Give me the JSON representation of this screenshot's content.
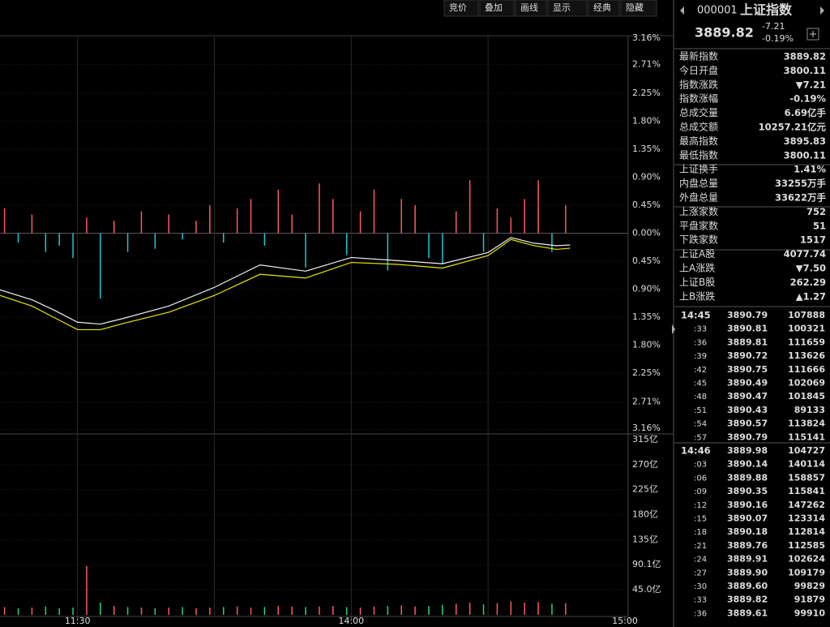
{
  "toolbar": [
    "竞价",
    "叠加",
    "画线",
    "显示",
    "经典",
    "隐藏"
  ],
  "quote": {
    "code": "000001",
    "name": "上证指数",
    "price": "3889.82",
    "change": "-7.21",
    "change_pct": "-0.19%"
  },
  "stats": [
    {
      "label": "最新指数",
      "value": "3889.82",
      "color": "#3ee06a"
    },
    {
      "label": "今日开盘",
      "value": "3800.11",
      "color": "#3ee06a"
    },
    {
      "label": "指数涨跌",
      "value": "▼7.21",
      "color": "#3ee06a"
    },
    {
      "label": "指数涨幅",
      "value": "-0.19%",
      "color": "#3ee06a"
    },
    {
      "label": "总成交量",
      "value": "6.69亿手",
      "color": "#e8e8e8"
    },
    {
      "label": "总成交额",
      "value": "10257.21亿元",
      "color": "#4ee8ff"
    },
    {
      "label": "最高指数",
      "value": "3895.83",
      "color": "#3ee06a"
    },
    {
      "label": "最低指数",
      "value": "3800.11",
      "color": "#3ee06a"
    },
    {
      "label": "上证换手",
      "value": "1.41%",
      "color": "#e8e8e8"
    },
    {
      "label": "内盘总量",
      "value": "33255万手",
      "color": "#3ee06a"
    },
    {
      "label": "外盘总量",
      "value": "33622万手",
      "color": "#ff4b4b"
    },
    {
      "label": "上涨家数",
      "value": "752",
      "color": "#ff4b4b"
    },
    {
      "label": "平盘家数",
      "value": "51",
      "color": "#e8e8e8"
    },
    {
      "label": "下跌家数",
      "value": "1517",
      "color": "#3ee06a"
    },
    {
      "label": "上证A股",
      "value": "4077.74",
      "color": "#3ee06a"
    },
    {
      "label": "上A涨跌",
      "value": "▼7.50",
      "color": "#3ee06a"
    },
    {
      "label": "上证B股",
      "value": "262.29",
      "color": "#ff4b4b"
    },
    {
      "label": "上B涨跌",
      "value": "▲1.27",
      "color": "#ff4b4b"
    }
  ],
  "trades": [
    {
      "time": "14:45",
      "price": "3890.79",
      "volume": "107888",
      "color": "#ff4b4b"
    },
    {
      "time": ":33",
      "price": "3890.81",
      "volume": "100321",
      "color": "#ff4b4b"
    },
    {
      "time": ":36",
      "price": "3889.81",
      "volume": "111659",
      "color": "#3ee06a"
    },
    {
      "time": ":39",
      "price": "3890.72",
      "volume": "113626",
      "color": "#ff4b4b"
    },
    {
      "time": ":42",
      "price": "3890.75",
      "volume": "111666",
      "color": "#3ee06a"
    },
    {
      "time": ":45",
      "price": "3890.49",
      "volume": "102069",
      "color": "#3ee06a"
    },
    {
      "time": ":48",
      "price": "3890.47",
      "volume": "101845",
      "color": "#3ee06a"
    },
    {
      "time": ":51",
      "price": "3890.43",
      "volume": "89133",
      "color": "#3ee06a"
    },
    {
      "time": ":54",
      "price": "3890.57",
      "volume": "113824",
      "color": "#ff4b4b"
    },
    {
      "time": ":57",
      "price": "3890.79",
      "volume": "115141",
      "color": "#3ee06a"
    },
    {
      "time": "14:46",
      "price": "3889.98",
      "volume": "104727",
      "color": "#3ee06a"
    },
    {
      "time": ":03",
      "price": "3890.14",
      "volume": "140114",
      "color": "#ff4b4b"
    },
    {
      "time": ":06",
      "price": "3889.88",
      "volume": "158857",
      "color": "#3ee06a"
    },
    {
      "time": ":09",
      "price": "3890.35",
      "volume": "115841",
      "color": "#ff4b4b"
    },
    {
      "time": ":12",
      "price": "3890.16",
      "volume": "147262",
      "color": "#3ee06a"
    },
    {
      "time": ":15",
      "price": "3890.07",
      "volume": "123314",
      "color": "#3ee06a"
    },
    {
      "time": ":18",
      "price": "3890.18",
      "volume": "112814",
      "color": "#ff4b4b"
    },
    {
      "time": ":21",
      "price": "3889.76",
      "volume": "112585",
      "color": "#3ee06a"
    },
    {
      "time": ":24",
      "price": "3889.91",
      "volume": "102624",
      "color": "#ff4b4b"
    },
    {
      "time": ":27",
      "price": "3889.90",
      "volume": "109179",
      "color": "#3ee06a"
    },
    {
      "time": ":30",
      "price": "3889.60",
      "volume": "99829",
      "color": "#3ee06a"
    },
    {
      "time": ":33",
      "price": "3889.82",
      "volume": "91879",
      "color": "#ff4b4b"
    },
    {
      "time": ":36",
      "price": "3889.61",
      "volume": "99910",
      "color": "#3ee06a"
    }
  ],
  "price_chart": {
    "type": "line",
    "xlim": [
      103,
      240
    ],
    "ylim": [
      -3.16,
      3.16
    ],
    "yticks": [
      {
        "value": 3.16,
        "label": "3.16%"
      },
      {
        "value": 2.71,
        "label": "2.71%"
      },
      {
        "value": 2.25,
        "label": "2.25%"
      },
      {
        "value": 1.8,
        "label": "1.80%"
      },
      {
        "value": 1.35,
        "label": "1.35%"
      },
      {
        "value": 0.9,
        "label": "0.90%"
      },
      {
        "value": 0.45,
        "label": "0.45%"
      },
      {
        "value": 0,
        "label": "0.00%"
      },
      {
        "value": -0.45,
        "label": "0.45%"
      },
      {
        "value": -0.9,
        "label": "0.90%"
      },
      {
        "value": -1.35,
        "label": "1.35%"
      },
      {
        "value": -1.8,
        "label": "1.80%"
      },
      {
        "value": -2.25,
        "label": "2.25%"
      },
      {
        "value": -2.71,
        "label": "2.71%"
      },
      {
        "value": -3.16,
        "label": "3.16%"
      }
    ],
    "xgrid": [
      120,
      150,
      180,
      210
    ],
    "xticks": [
      {
        "value": 120,
        "label": "11:30"
      },
      {
        "value": 180,
        "label": "14:00"
      },
      {
        "value": 240,
        "label": "15:00"
      }
    ],
    "x": [
      103,
      110,
      115,
      120,
      125,
      130,
      140,
      150,
      160,
      170,
      180,
      190,
      200,
      210,
      215,
      220,
      225,
      228
    ],
    "series": [
      {
        "color": "#f0f0f0",
        "values": [
          -0.91,
          -1.07,
          -1.24,
          -1.43,
          -1.46,
          -1.37,
          -1.17,
          -0.87,
          -0.51,
          -0.61,
          -0.39,
          -0.44,
          -0.49,
          -0.31,
          -0.07,
          -0.16,
          -0.2,
          -0.19
        ]
      },
      {
        "color": "#e6e600",
        "values": [
          -1.0,
          -1.17,
          -1.36,
          -1.55,
          -1.55,
          -1.45,
          -1.27,
          -1.0,
          -0.66,
          -0.72,
          -0.47,
          -0.5,
          -0.56,
          -0.36,
          -0.1,
          -0.2,
          -0.26,
          -0.24
        ]
      }
    ],
    "up_color": "#ff5a5a",
    "down_color": "#1ec8d2"
  },
  "minute_bars": {
    "x": [
      104,
      107,
      110,
      113,
      116,
      119,
      122,
      125,
      128,
      131,
      134,
      137,
      140,
      143,
      146,
      149,
      152,
      155,
      158,
      161,
      164,
      167,
      170,
      173,
      176,
      179,
      182,
      185,
      188,
      191,
      194,
      197,
      200,
      203,
      206,
      209,
      212,
      215,
      218,
      221,
      224,
      227
    ],
    "breadth": [
      0.4,
      -0.15,
      0.3,
      -0.3,
      -0.2,
      -0.4,
      0.25,
      -1.05,
      0.2,
      -0.3,
      0.35,
      -0.25,
      0.3,
      -0.1,
      0.2,
      0.45,
      -0.15,
      0.4,
      0.55,
      -0.2,
      0.7,
      0.3,
      -0.55,
      0.8,
      0.55,
      -0.35,
      0.35,
      0.7,
      -0.6,
      0.55,
      0.45,
      -0.4,
      -0.5,
      0.35,
      0.85,
      -0.3,
      0.4,
      0.25,
      0.55,
      0.85,
      -0.3,
      0.45
    ],
    "volume": [
      14,
      12,
      13,
      15,
      12,
      13,
      88,
      22,
      16,
      14,
      13,
      12,
      13,
      14,
      12,
      13,
      14,
      15,
      13,
      14,
      16,
      15,
      14,
      15,
      16,
      14,
      13,
      15,
      16,
      17,
      15,
      16,
      18,
      20,
      22,
      19,
      21,
      24,
      22,
      23,
      20,
      21
    ]
  },
  "volume_chart": {
    "type": "bar",
    "ylim": [
      0,
      315
    ],
    "yticks": [
      {
        "value": 315,
        "label": "315亿"
      },
      {
        "value": 270,
        "label": "270亿"
      },
      {
        "value": 225,
        "label": "225亿"
      },
      {
        "value": 180,
        "label": "180亿"
      },
      {
        "value": 135,
        "label": "135亿"
      },
      {
        "value": 90.1,
        "label": "90.1亿"
      },
      {
        "value": 45,
        "label": "45.0亿"
      }
    ],
    "up_color": "#ff5a5a",
    "down_color": "#2ed36a"
  }
}
